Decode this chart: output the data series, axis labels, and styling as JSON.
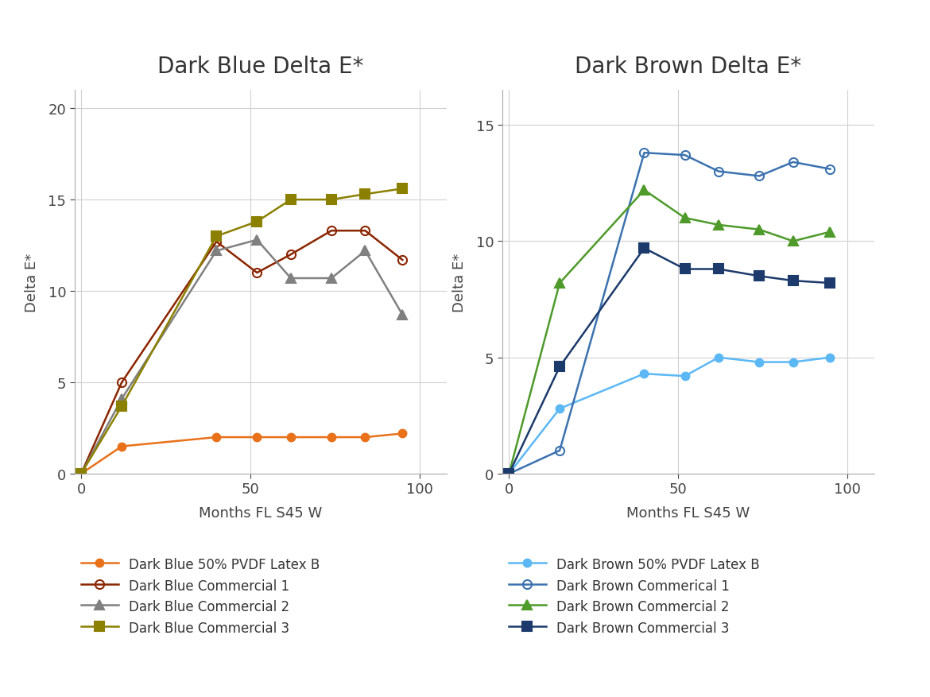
{
  "left_title": "Dark Blue Delta E*",
  "right_title": "Dark Brown Delta E*",
  "xlabel": "Months FL S45 W",
  "ylabel": "Delta E*",
  "left_series": [
    {
      "label": "Dark Blue 50% PVDF Latex B",
      "x": [
        0,
        12,
        40,
        52,
        62,
        74,
        84,
        95
      ],
      "y": [
        0,
        1.5,
        2.0,
        2.0,
        2.0,
        2.0,
        2.0,
        2.2
      ],
      "color": "#E8711A",
      "marker": "o",
      "fillstyle": "full",
      "linewidth": 1.8,
      "markersize": 7
    },
    {
      "label": "Dark Blue Commercial 1",
      "x": [
        0,
        12,
        40,
        52,
        62,
        74,
        84,
        95
      ],
      "y": [
        0,
        5.0,
        12.7,
        11.0,
        12.0,
        13.3,
        13.3,
        11.7
      ],
      "color": "#8B2500",
      "marker": "o",
      "fillstyle": "none",
      "linewidth": 1.8,
      "markersize": 8
    },
    {
      "label": "Dark Blue Commercial 2",
      "x": [
        0,
        12,
        40,
        52,
        62,
        74,
        84,
        95
      ],
      "y": [
        0,
        4.1,
        12.2,
        12.8,
        10.7,
        10.7,
        12.2,
        8.7
      ],
      "color": "#808080",
      "marker": "^",
      "fillstyle": "full",
      "linewidth": 1.8,
      "markersize": 8
    },
    {
      "label": "Dark Blue Commercial 3",
      "x": [
        0,
        12,
        40,
        52,
        62,
        74,
        84,
        95
      ],
      "y": [
        0,
        3.7,
        13.0,
        13.8,
        15.0,
        15.0,
        15.3,
        15.6
      ],
      "color": "#8B8000",
      "marker": "s",
      "fillstyle": "full",
      "linewidth": 1.8,
      "markersize": 8
    }
  ],
  "left_ylim": [
    0,
    21
  ],
  "left_yticks": [
    0,
    5,
    10,
    15,
    20
  ],
  "left_xlim": [
    -2,
    108
  ],
  "left_xticks": [
    0,
    50,
    100
  ],
  "right_series": [
    {
      "label": "Dark Brown 50% PVDF Latex B",
      "x": [
        0,
        15,
        40,
        52,
        62,
        74,
        84,
        95
      ],
      "y": [
        0,
        2.8,
        4.3,
        4.2,
        5.0,
        4.8,
        4.8,
        5.0
      ],
      "color": "#5BB8F5",
      "marker": "o",
      "fillstyle": "full",
      "linewidth": 1.8,
      "markersize": 7
    },
    {
      "label": "Dark Brown Commerical 1",
      "x": [
        0,
        15,
        40,
        52,
        62,
        74,
        84,
        95
      ],
      "y": [
        0,
        1.0,
        13.8,
        13.7,
        13.0,
        12.8,
        13.4,
        13.1
      ],
      "color": "#3B72AF",
      "marker": "o",
      "fillstyle": "none",
      "linewidth": 1.8,
      "markersize": 8
    },
    {
      "label": "Dark Brown Commercial 2",
      "x": [
        0,
        15,
        40,
        52,
        62,
        74,
        84,
        95
      ],
      "y": [
        0,
        8.2,
        12.2,
        11.0,
        10.7,
        10.5,
        10.0,
        10.4
      ],
      "color": "#4E9A2A",
      "marker": "^",
      "fillstyle": "full",
      "linewidth": 1.8,
      "markersize": 8
    },
    {
      "label": "Dark Brown Commercial 3",
      "x": [
        0,
        15,
        40,
        52,
        62,
        74,
        84,
        95
      ],
      "y": [
        0,
        4.6,
        9.7,
        8.8,
        8.8,
        8.5,
        8.3,
        8.2
      ],
      "color": "#1C3A6B",
      "marker": "s",
      "fillstyle": "full",
      "linewidth": 1.8,
      "markersize": 8
    }
  ],
  "right_ylim": [
    0,
    16.5
  ],
  "right_yticks": [
    0,
    5,
    10,
    15
  ],
  "right_xlim": [
    -2,
    108
  ],
  "right_xticks": [
    0,
    50,
    100
  ],
  "background_color": "#FFFFFF",
  "plot_bg_color": "#FFFFFF",
  "grid_color": "#D0D0D0",
  "title_fontsize": 20,
  "label_fontsize": 13,
  "tick_fontsize": 13,
  "legend_fontsize": 12
}
